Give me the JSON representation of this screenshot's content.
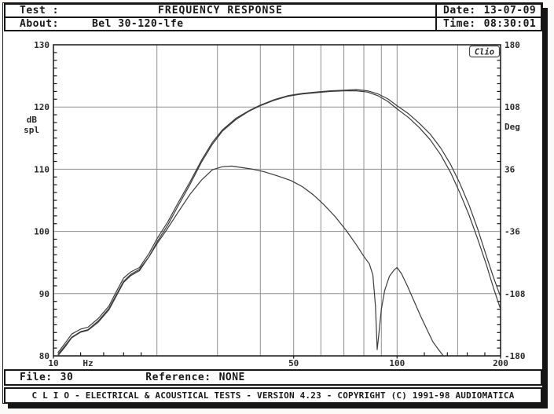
{
  "header": {
    "test_label": "Test :",
    "title": "FREQUENCY RESPONSE",
    "date_label": "Date:",
    "date_value": "13-07-09",
    "about_label": "About:",
    "about_value": "Bel 30-120-lfe",
    "time_label": "Time:",
    "time_value": "08:30:01"
  },
  "footer": {
    "file_label": "File:",
    "file_value": "30",
    "reference_label": "Reference:",
    "reference_value": "NONE",
    "status_text": "C L I O - ELECTRICAL & ACOUSTICAL TESTS - VERSION 4.23 - COPYRIGHT (C) 1991-98 AUDIOMATICA"
  },
  "chart_data": {
    "type": "line",
    "title": "FREQUENCY RESPONSE",
    "grid": true,
    "logo": "Clio",
    "colors": {
      "curve": "#3b3b3b",
      "grid": "#8f8f8f",
      "axis": "#161616"
    },
    "x_axis": {
      "unit": "Hz",
      "scale": "log",
      "min": 10,
      "max": 200,
      "tick_labels": [
        10,
        50,
        100,
        200
      ],
      "gridlines": [
        20,
        30,
        40,
        50,
        60,
        70,
        80,
        90,
        100,
        150
      ],
      "minor_ticks": [
        12,
        14,
        16,
        18,
        120,
        140,
        160,
        180
      ]
    },
    "y_left": {
      "unit_line1": "dB",
      "unit_line2": "spl",
      "min": 80,
      "max": 130,
      "ticks": [
        130,
        120,
        110,
        100,
        90,
        80
      ],
      "minor_step": 1.25
    },
    "y_right": {
      "unit": "Deg",
      "min": -180,
      "max": 180,
      "ticks": [
        180,
        108,
        36,
        -36,
        -108,
        -180
      ],
      "minor_step": 9
    },
    "series": [
      {
        "name": "response-upper",
        "points": [
          [
            10.3,
            80.5
          ],
          [
            10.8,
            82.0
          ],
          [
            11.3,
            83.5
          ],
          [
            12.0,
            84.3
          ],
          [
            12.6,
            84.6
          ],
          [
            13.5,
            86.0
          ],
          [
            14.5,
            88.0
          ],
          [
            15.3,
            90.5
          ],
          [
            16.0,
            92.5
          ],
          [
            16.8,
            93.5
          ],
          [
            17.8,
            94.2
          ],
          [
            19.0,
            96.5
          ],
          [
            20.0,
            98.8
          ],
          [
            21.5,
            101.5
          ],
          [
            23.0,
            104.5
          ],
          [
            25.0,
            108.0
          ],
          [
            27.0,
            111.5
          ],
          [
            29.0,
            114.3
          ],
          [
            31.0,
            116.3
          ],
          [
            34.0,
            118.2
          ],
          [
            37.0,
            119.4
          ],
          [
            40.0,
            120.3
          ],
          [
            44.0,
            121.2
          ],
          [
            48.0,
            121.8
          ],
          [
            53.0,
            122.2
          ],
          [
            58.0,
            122.4
          ],
          [
            64.0,
            122.6
          ],
          [
            70.0,
            122.7
          ],
          [
            76.0,
            122.8
          ],
          [
            82.0,
            122.6
          ],
          [
            88.0,
            122.1
          ],
          [
            94.0,
            121.3
          ],
          [
            100.0,
            120.2
          ],
          [
            108.0,
            118.9
          ],
          [
            116.0,
            117.4
          ],
          [
            125.0,
            115.6
          ],
          [
            134.0,
            113.4
          ],
          [
            143.0,
            110.8
          ],
          [
            152.0,
            107.8
          ],
          [
            162.0,
            104.2
          ],
          [
            172.0,
            100.2
          ],
          [
            182.0,
            96.0
          ],
          [
            191.0,
            92.5
          ],
          [
            200.0,
            89.5
          ]
        ]
      },
      {
        "name": "response-lower",
        "points": [
          [
            10.3,
            80.0
          ],
          [
            10.8,
            81.4
          ],
          [
            11.3,
            82.9
          ],
          [
            12.0,
            83.8
          ],
          [
            12.6,
            84.1
          ],
          [
            13.5,
            85.4
          ],
          [
            14.5,
            87.4
          ],
          [
            15.3,
            89.8
          ],
          [
            16.0,
            91.8
          ],
          [
            16.8,
            92.9
          ],
          [
            17.8,
            93.7
          ],
          [
            19.0,
            96.0
          ],
          [
            20.0,
            98.3
          ],
          [
            21.5,
            101.0
          ],
          [
            23.0,
            104.0
          ],
          [
            25.0,
            107.6
          ],
          [
            27.0,
            111.2
          ],
          [
            29.0,
            114.0
          ],
          [
            31.0,
            116.1
          ],
          [
            34.0,
            118.0
          ],
          [
            37.0,
            119.3
          ],
          [
            40.0,
            120.2
          ],
          [
            44.0,
            121.1
          ],
          [
            48.0,
            121.7
          ],
          [
            53.0,
            122.1
          ],
          [
            58.0,
            122.3
          ],
          [
            64.0,
            122.5
          ],
          [
            70.0,
            122.6
          ],
          [
            76.0,
            122.6
          ],
          [
            82.0,
            122.4
          ],
          [
            88.0,
            121.8
          ],
          [
            94.0,
            120.9
          ],
          [
            100.0,
            119.7
          ],
          [
            108.0,
            118.3
          ],
          [
            116.0,
            116.7
          ],
          [
            125.0,
            114.7
          ],
          [
            134.0,
            112.3
          ],
          [
            143.0,
            109.5
          ],
          [
            152.0,
            106.3
          ],
          [
            162.0,
            102.6
          ],
          [
            172.0,
            98.6
          ],
          [
            182.0,
            94.6
          ],
          [
            191.0,
            90.8
          ],
          [
            200.0,
            87.5
          ]
        ]
      },
      {
        "name": "response-lowpass-lfe",
        "points": [
          [
            10.3,
            80.2
          ],
          [
            10.8,
            81.6
          ],
          [
            11.3,
            83.0
          ],
          [
            12.0,
            83.9
          ],
          [
            12.6,
            84.2
          ],
          [
            13.5,
            85.6
          ],
          [
            14.5,
            87.6
          ],
          [
            15.3,
            90.0
          ],
          [
            16.0,
            92.0
          ],
          [
            16.8,
            93.1
          ],
          [
            17.8,
            93.9
          ],
          [
            19.0,
            96.0
          ],
          [
            20.0,
            98.0
          ],
          [
            21.5,
            100.5
          ],
          [
            23.0,
            103.0
          ],
          [
            25.0,
            106.0
          ],
          [
            27.0,
            108.3
          ],
          [
            29.0,
            109.9
          ],
          [
            31.0,
            110.4
          ],
          [
            33.0,
            110.5
          ],
          [
            35.0,
            110.3
          ],
          [
            38.0,
            110.0
          ],
          [
            41.0,
            109.6
          ],
          [
            45.0,
            108.9
          ],
          [
            49.0,
            108.2
          ],
          [
            53.0,
            107.2
          ],
          [
            57.0,
            105.9
          ],
          [
            61.0,
            104.4
          ],
          [
            66.0,
            102.4
          ],
          [
            71.0,
            100.2
          ],
          [
            76.0,
            97.9
          ],
          [
            80.0,
            96.0
          ],
          [
            83.0,
            94.8
          ],
          [
            85.0,
            93.0
          ],
          [
            86.5,
            88.0
          ],
          [
            87.5,
            81.0
          ],
          [
            88.5,
            83.5
          ],
          [
            90.0,
            87.5
          ],
          [
            92.0,
            90.5
          ],
          [
            95.0,
            92.8
          ],
          [
            98.0,
            93.8
          ],
          [
            100.0,
            94.2
          ],
          [
            103.0,
            93.2
          ],
          [
            107.0,
            91.3
          ],
          [
            112.0,
            88.8
          ],
          [
            117.0,
            86.4
          ],
          [
            122.0,
            84.3
          ],
          [
            127.0,
            82.3
          ],
          [
            132.0,
            81.0
          ],
          [
            136.0,
            80.1
          ]
        ]
      }
    ]
  }
}
